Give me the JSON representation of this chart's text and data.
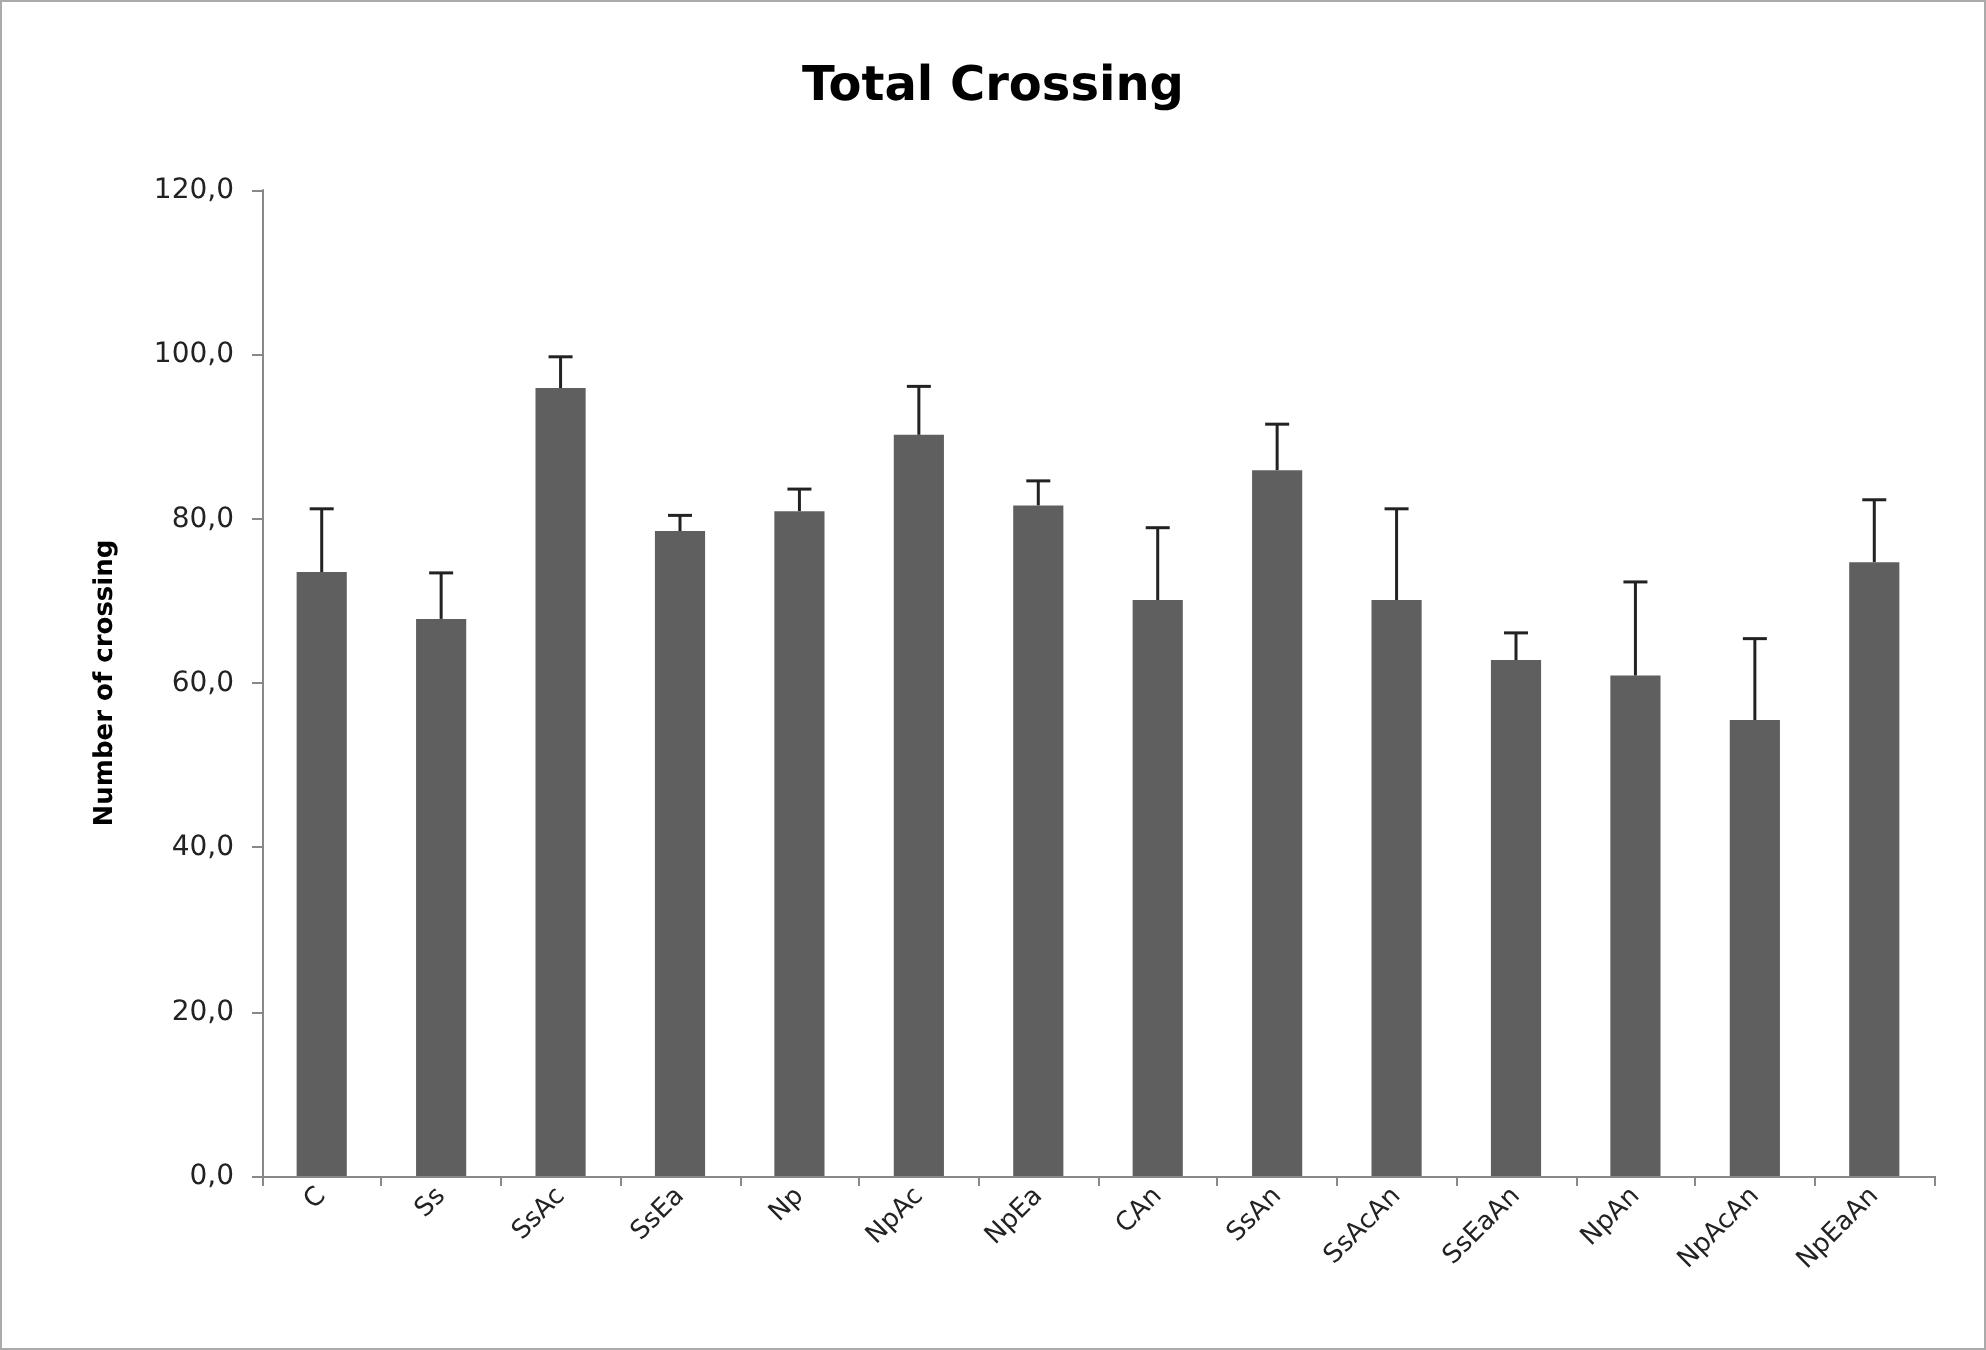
{
  "chart_data": {
    "type": "bar",
    "title": "Total Crossing",
    "ylabel": "Number of crossing",
    "categories": [
      "C",
      "Ss",
      "SsAc",
      "SsEa",
      "Np",
      "NpAc",
      "NpEa",
      "CAn",
      "SsAn",
      "SsAcAn",
      "SsEaAn",
      "NpAn",
      "NpAcAn",
      "NpEaAn"
    ],
    "values": [
      73.5,
      67.8,
      95.9,
      78.5,
      80.9,
      90.2,
      81.6,
      70.1,
      85.9,
      70.1,
      62.8,
      60.9,
      55.5,
      74.7
    ],
    "errors": [
      [
        73.5,
        81.2
      ],
      [
        67.8,
        73.4
      ],
      [
        95.9,
        99.7
      ],
      [
        78.5,
        80.4
      ],
      [
        80.9,
        83.6
      ],
      [
        90.2,
        96.1
      ],
      [
        81.6,
        84.6
      ],
      [
        70.1,
        78.9
      ],
      [
        85.9,
        91.5
      ],
      [
        70.1,
        81.2
      ],
      [
        62.8,
        66.1
      ],
      [
        60.9,
        72.3
      ],
      [
        55.5,
        65.4
      ],
      [
        74.7,
        82.3
      ]
    ],
    "color": "#5f5f5f",
    "ylim": [
      0,
      120
    ],
    "yticks": [
      {
        "value": 0,
        "label": "0,0"
      },
      {
        "value": 20,
        "label": "20,0"
      },
      {
        "value": 40,
        "label": "40,0"
      },
      {
        "value": 60,
        "label": "60,0"
      },
      {
        "value": 80,
        "label": "80,0"
      },
      {
        "value": 100,
        "label": "100,0"
      },
      {
        "value": 120,
        "label": "120,0"
      }
    ],
    "grid": false
  }
}
